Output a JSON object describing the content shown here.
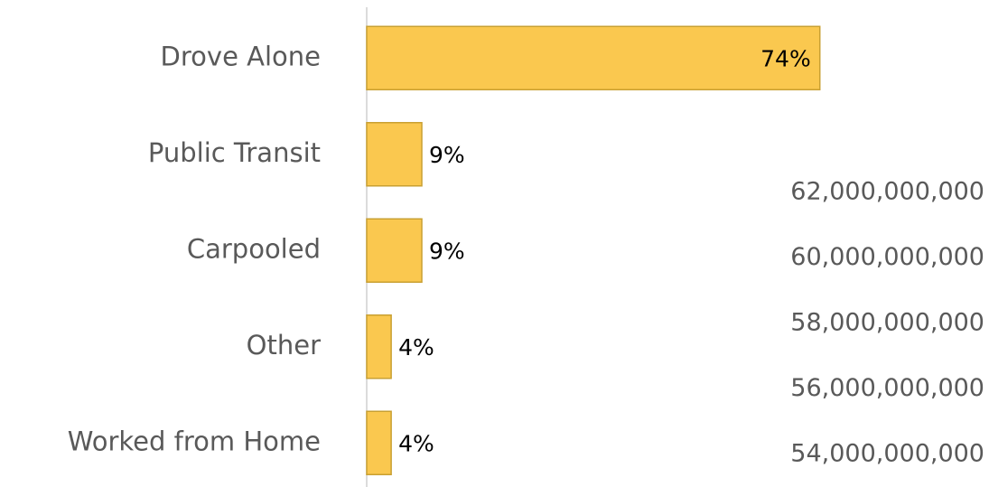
{
  "chart_data": [
    {
      "type": "bar",
      "orientation": "horizontal",
      "categories": [
        "Drove Alone",
        "Public Transit",
        "Carpooled",
        "Other",
        "Worked from Home"
      ],
      "values": [
        74,
        9,
        9,
        4,
        4
      ],
      "value_labels": [
        "74%",
        "9%",
        "9%",
        "4%",
        "4%"
      ],
      "color": "#fac84f"
    },
    {
      "type": "line",
      "ylim": [
        54000000000,
        62000000000
      ],
      "yticks": [
        {
          "value": 62000000000,
          "label": "62,000,000,000"
        },
        {
          "value": 60000000000,
          "label": "60,000,000,000"
        },
        {
          "value": 58000000000,
          "label": "58,000,000,000"
        },
        {
          "value": 56000000000,
          "label": "56,000,000,000"
        },
        {
          "value": 54000000000,
          "label": "54,000,000,000"
        }
      ]
    }
  ]
}
